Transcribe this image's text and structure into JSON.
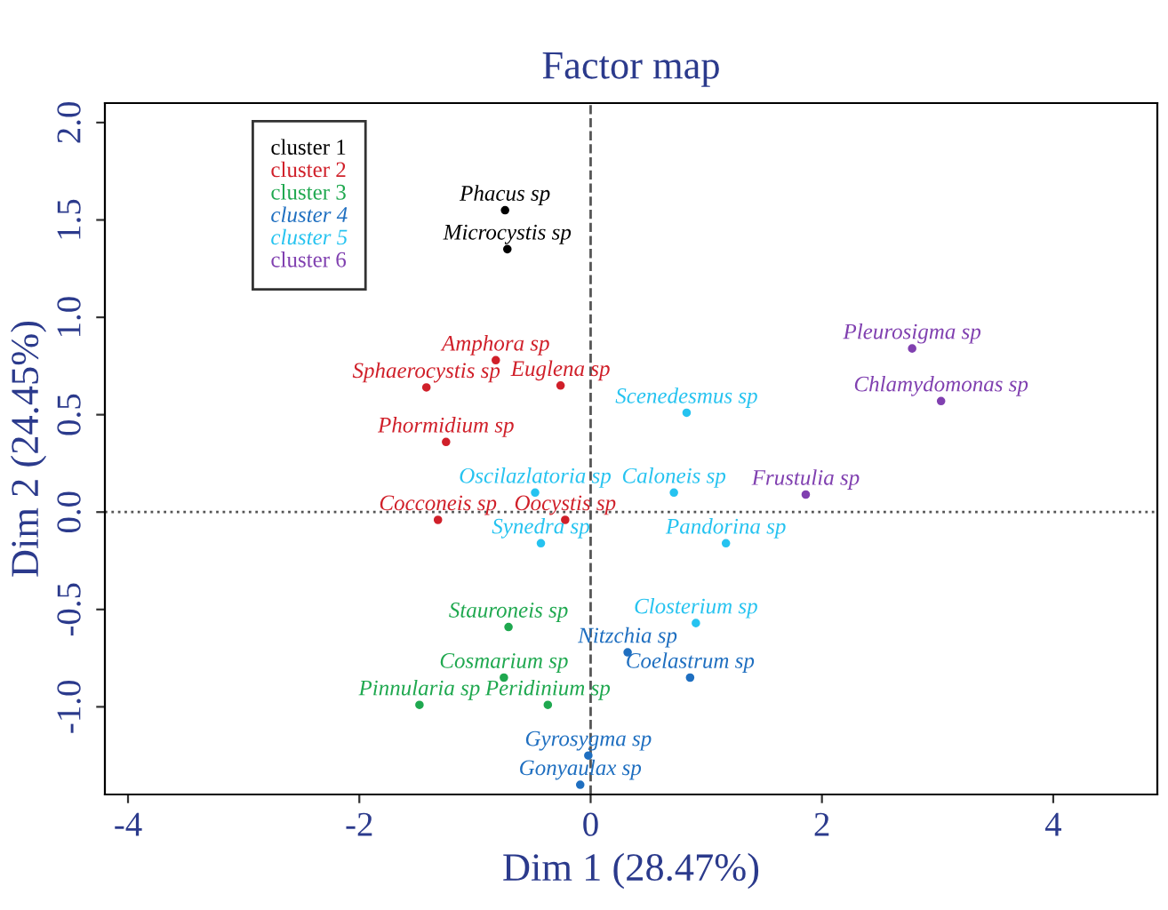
{
  "chart_data": {
    "type": "scatter",
    "title": "Factor map",
    "xlabel": "Dim 1 (28.47%)",
    "ylabel": "Dim 2 (24.45%)",
    "xlim": [
      -4.2,
      4.9
    ],
    "ylim": [
      -1.45,
      2.1
    ],
    "xticks": [
      -4,
      -2,
      0,
      2,
      4
    ],
    "yticks": [
      {
        "value": -1,
        "label": "-1.0"
      },
      -0.5,
      {
        "value": 0,
        "label": "0.0"
      },
      0.5,
      {
        "value": 1,
        "label": "1.0"
      },
      1.5,
      {
        "value": 2,
        "label": "2.0"
      }
    ],
    "grid": false,
    "legend": "top left",
    "marker": "circle",
    "ref_lines": [
      {
        "axis": "x",
        "value": 0,
        "line_style": "dashed"
      },
      {
        "axis": "y",
        "value": 0,
        "line_style": "dotted"
      }
    ],
    "series": [
      {
        "name": "cluster 1",
        "color": "#000000",
        "x": [
          -0.74,
          -0.72
        ],
        "values": [
          1.55,
          1.35
        ],
        "value_labels": [
          "Phacus sp",
          "Microcystis sp"
        ]
      },
      {
        "name": "cluster 2",
        "color": "#d0202a",
        "x": [
          -0.82,
          -1.42,
          -0.26,
          -1.25,
          -1.32,
          -0.22
        ],
        "values": [
          0.78,
          0.64,
          0.65,
          0.36,
          -0.04,
          -0.04
        ],
        "value_labels": [
          "Amphora sp",
          "Sphaerocystis sp",
          "Euglena sp",
          "Phormidium sp",
          "Cocconeis sp",
          "Oocystis sp"
        ]
      },
      {
        "name": "cluster 3",
        "color": "#1fa84f",
        "x": [
          -0.71,
          -0.75,
          -1.48,
          -0.37
        ],
        "values": [
          -0.59,
          -0.85,
          -0.99,
          -0.99
        ],
        "value_labels": [
          "Stauroneis sp",
          "Cosmarium sp",
          "Pinnularia sp",
          "Peridinium sp"
        ]
      },
      {
        "name": "cluster 4",
        "color": "#1f6fc0",
        "x": [
          0.32,
          0.86,
          -0.02,
          -0.09
        ],
        "values": [
          -0.72,
          -0.85,
          -1.25,
          -1.4
        ],
        "value_labels": [
          "Nitzchia sp",
          "Coelastrum sp",
          "Gyrosygma sp",
          "Gonyaulax sp"
        ]
      },
      {
        "name": "cluster 5",
        "color": "#26c3f0",
        "x": [
          0.83,
          -0.48,
          0.72,
          -0.43,
          1.17,
          0.91
        ],
        "values": [
          0.51,
          0.1,
          0.1,
          -0.16,
          -0.16,
          -0.57
        ],
        "value_labels": [
          "Scenedesmus sp",
          "Oscilazlatoria sp",
          "Caloneis sp",
          "Synedra sp",
          "Pandorina sp",
          "Closterium sp"
        ]
      },
      {
        "name": "cluster 6",
        "color": "#8040b0",
        "x": [
          2.78,
          3.03,
          1.86
        ],
        "values": [
          0.84,
          0.57,
          0.09
        ],
        "value_labels": [
          "Pleurosigma sp",
          "Chlamydomonas sp",
          "Frustulia sp"
        ]
      }
    ]
  }
}
